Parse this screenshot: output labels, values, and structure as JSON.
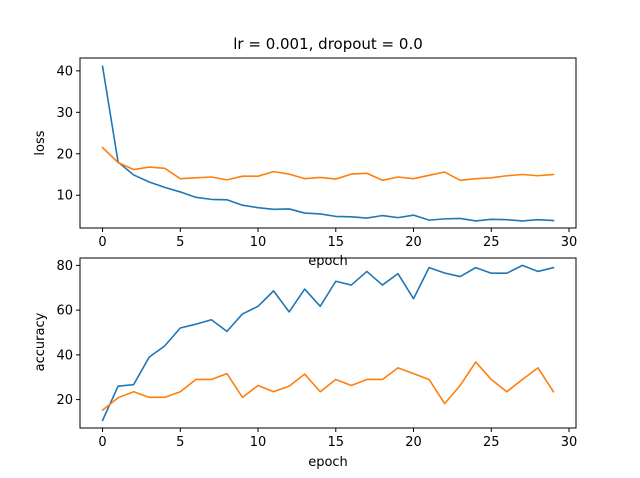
{
  "chart_data": [
    {
      "type": "line",
      "title": "lr = 0.001, dropout = 0.0",
      "xlabel": "epoch",
      "ylabel": "loss",
      "xlim": [
        -1.45,
        30.45
      ],
      "ylim": [
        2.1,
        43.1
      ],
      "xticks": [
        0,
        5,
        10,
        15,
        20,
        25,
        30
      ],
      "yticks": [
        10,
        20,
        30,
        40
      ],
      "grid": false,
      "x": [
        0,
        1,
        2,
        3,
        4,
        5,
        6,
        7,
        8,
        9,
        10,
        11,
        12,
        13,
        14,
        15,
        16,
        17,
        18,
        19,
        20,
        21,
        22,
        23,
        24,
        25,
        26,
        27,
        28,
        29
      ],
      "series": [
        {
          "color": "#1f77b4",
          "values": [
            41.1,
            18.0,
            14.9,
            13.2,
            11.9,
            10.8,
            9.5,
            9.0,
            8.9,
            7.6,
            7.0,
            6.6,
            6.7,
            5.7,
            5.5,
            4.9,
            4.8,
            4.5,
            5.1,
            4.6,
            5.2,
            4.0,
            4.3,
            4.4,
            3.8,
            4.2,
            4.1,
            3.8,
            4.1,
            3.9
          ]
        },
        {
          "color": "#ff7f0e",
          "values": [
            21.5,
            17.9,
            16.2,
            16.8,
            16.5,
            14.0,
            14.2,
            14.4,
            13.7,
            14.6,
            14.6,
            15.7,
            15.1,
            14.0,
            14.3,
            13.9,
            15.1,
            15.3,
            13.6,
            14.4,
            14.0,
            14.8,
            15.6,
            13.6,
            14.0,
            14.2,
            14.7,
            15.0,
            14.7,
            15.0
          ]
        }
      ]
    },
    {
      "type": "line",
      "title": "",
      "xlabel": "epoch",
      "ylabel": "accuracy",
      "xlim": [
        -1.45,
        30.45
      ],
      "ylim": [
        7.3,
        83.3
      ],
      "xticks": [
        0,
        5,
        10,
        15,
        20,
        25,
        30
      ],
      "yticks": [
        20,
        40,
        60,
        80
      ],
      "grid": false,
      "x": [
        0,
        1,
        2,
        3,
        4,
        5,
        6,
        7,
        8,
        9,
        10,
        11,
        12,
        13,
        14,
        15,
        16,
        17,
        18,
        19,
        20,
        21,
        22,
        23,
        24,
        25,
        26,
        27,
        28,
        29
      ],
      "series": [
        {
          "color": "#1f77b4",
          "values": [
            10.7,
            26.0,
            26.7,
            39.0,
            44.0,
            52.0,
            53.7,
            55.7,
            50.5,
            58.3,
            61.7,
            68.6,
            59.2,
            69.4,
            61.7,
            72.9,
            71.2,
            77.3,
            71.2,
            76.3,
            65.1,
            79.0,
            76.6,
            75.0,
            79.0,
            76.5,
            76.5,
            80.0,
            77.3,
            79.0
          ]
        },
        {
          "color": "#ff7f0e",
          "values": [
            15.3,
            20.8,
            23.5,
            21.0,
            21.0,
            23.5,
            29.0,
            29.0,
            31.6,
            21.0,
            26.3,
            23.5,
            26.0,
            31.4,
            23.5,
            29.0,
            26.3,
            29.0,
            29.0,
            34.2,
            31.6,
            29.0,
            18.2,
            26.3,
            36.8,
            29.0,
            23.5,
            29.0,
            34.2,
            23.5
          ]
        }
      ]
    }
  ]
}
